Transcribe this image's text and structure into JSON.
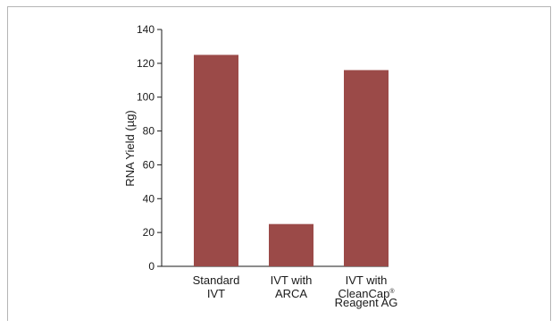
{
  "chart_data": {
    "type": "bar",
    "categories": [
      [
        "Standard",
        "IVT"
      ],
      [
        "IVT with",
        "ARCA"
      ],
      [
        "IVT with",
        "CleanCap®",
        "Reagent AG"
      ]
    ],
    "values": [
      125,
      25,
      116
    ],
    "title": "",
    "xlabel": "",
    "ylabel": "RNA Yield (µg)",
    "ylim": [
      0,
      140
    ],
    "yticks": [
      0,
      20,
      40,
      60,
      80,
      100,
      120,
      140
    ],
    "grid": false,
    "bar_color": "#9b4a48"
  }
}
